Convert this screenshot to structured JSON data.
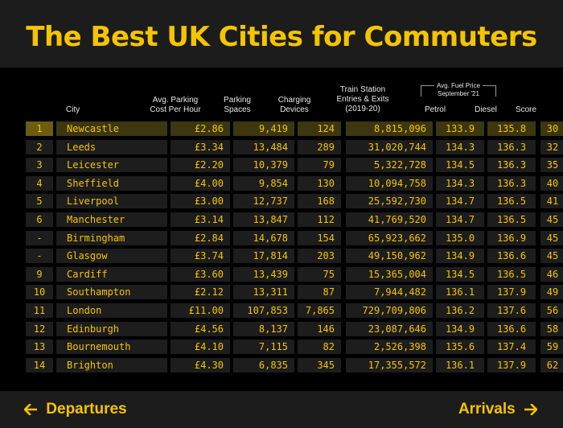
{
  "title": "The Best UK Cities for Commuters",
  "columns": {
    "city": "City",
    "parking_cost": [
      "Avg. Parking",
      "Cost Per Hour"
    ],
    "parking_spaces": [
      "Parking",
      "Spaces"
    ],
    "charging": [
      "Charging",
      "Devices"
    ],
    "train": [
      "Train Station",
      "Entries & Exits",
      "(2019-20)"
    ],
    "fuel_group": [
      "Avg. Fuel Price",
      "September '21"
    ],
    "petrol": "Petrol",
    "diesel": "Diesel",
    "score": "Score"
  },
  "rows": [
    {
      "rank": "1",
      "city": "Newcastle",
      "cost": "£2.86",
      "spaces": "9,419",
      "charging": "124",
      "train": "8,815,096",
      "petrol": "133.9",
      "diesel": "135.8",
      "score": "30"
    },
    {
      "rank": "2",
      "city": "Leeds",
      "cost": "£3.34",
      "spaces": "13,484",
      "charging": "289",
      "train": "31,020,744",
      "petrol": "134.3",
      "diesel": "136.3",
      "score": "32"
    },
    {
      "rank": "3",
      "city": "Leicester",
      "cost": "£2.20",
      "spaces": "10,379",
      "charging": "79",
      "train": "5,322,728",
      "petrol": "134.5",
      "diesel": "136.3",
      "score": "35"
    },
    {
      "rank": "4",
      "city": "Sheffield",
      "cost": "£4.00",
      "spaces": "9,854",
      "charging": "130",
      "train": "10,094,758",
      "petrol": "134.3",
      "diesel": "136.3",
      "score": "40"
    },
    {
      "rank": "5",
      "city": "Liverpool",
      "cost": "£3.00",
      "spaces": "12,737",
      "charging": "168",
      "train": "25,592,730",
      "petrol": "134.7",
      "diesel": "136.5",
      "score": "41"
    },
    {
      "rank": "6",
      "city": "Manchester",
      "cost": "£3.14",
      "spaces": "13,847",
      "charging": "112",
      "train": "41,769,520",
      "petrol": "134.7",
      "diesel": "136.5",
      "score": "45"
    },
    {
      "rank": "-",
      "city": "Birmingham",
      "cost": "£2.84",
      "spaces": "14,678",
      "charging": "154",
      "train": "65,923,662",
      "petrol": "135.0",
      "diesel": "136.9",
      "score": "45"
    },
    {
      "rank": "-",
      "city": "Glasgow",
      "cost": "£3.74",
      "spaces": "17,814",
      "charging": "203",
      "train": "49,150,962",
      "petrol": "134.9",
      "diesel": "136.6",
      "score": "45"
    },
    {
      "rank": "9",
      "city": "Cardiff",
      "cost": "£3.60",
      "spaces": "13,439",
      "charging": "75",
      "train": "15,365,004",
      "petrol": "134.5",
      "diesel": "136.5",
      "score": "46"
    },
    {
      "rank": "10",
      "city": "Southampton",
      "cost": "£2.12",
      "spaces": "13,311",
      "charging": "87",
      "train": "7,944,482",
      "petrol": "136.1",
      "diesel": "137.9",
      "score": "49"
    },
    {
      "rank": "11",
      "city": "London",
      "cost": "£11.00",
      "spaces": "107,853",
      "charging": "7,865",
      "train": "729,709,806",
      "petrol": "136.2",
      "diesel": "137.6",
      "score": "56"
    },
    {
      "rank": "12",
      "city": "Edinburgh",
      "cost": "£4.56",
      "spaces": "8,137",
      "charging": "146",
      "train": "23,087,646",
      "petrol": "134.9",
      "diesel": "136.6",
      "score": "58"
    },
    {
      "rank": "13",
      "city": "Bournemouth",
      "cost": "£4.10",
      "spaces": "7,115",
      "charging": "82",
      "train": "2,526,398",
      "petrol": "135.6",
      "diesel": "137.4",
      "score": "59"
    },
    {
      "rank": "14",
      "city": "Brighton",
      "cost": "£4.30",
      "spaces": "6,835",
      "charging": "345",
      "train": "17,355,572",
      "petrol": "136.1",
      "diesel": "137.9",
      "score": "62"
    }
  ],
  "footer": {
    "departures": "Departures",
    "arrivals": "Arrivals"
  },
  "colors": {
    "accent": "#f5c400",
    "background": "#000000",
    "panel": "#1c1c1c",
    "cell": "#1d1d1d",
    "highlight": "#3c3710"
  },
  "icons": {
    "left": "arrow-left-icon",
    "right": "arrow-right-icon"
  }
}
